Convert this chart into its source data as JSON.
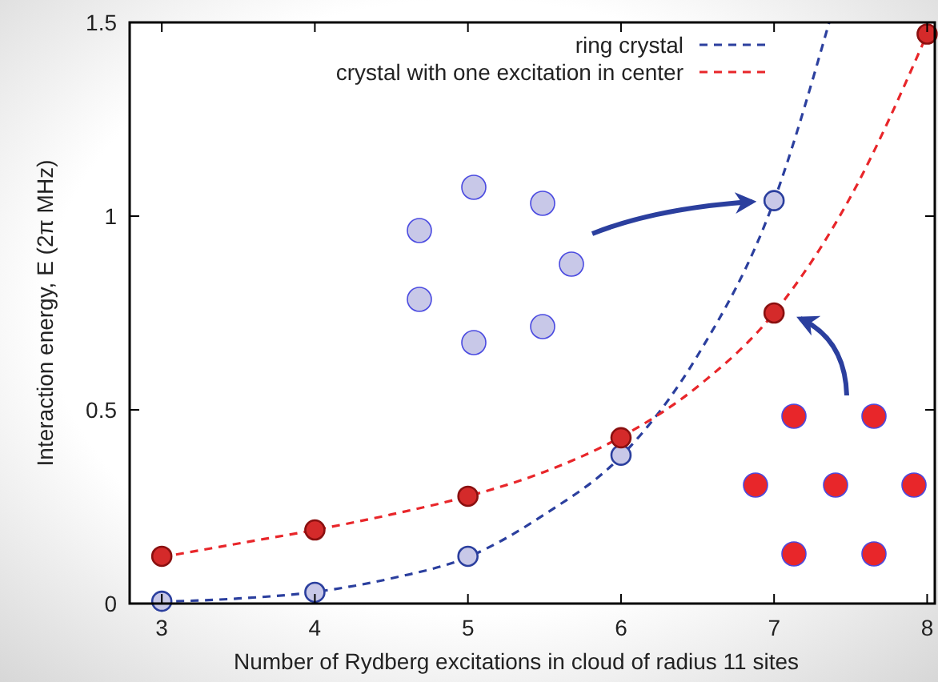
{
  "chart_data": {
    "type": "scatter",
    "xlabel": "Number of Rydberg excitations in cloud of radius 11 sites",
    "ylabel": "Interaction energy, E (2π MHz)",
    "xlim": [
      2.79,
      8.05
    ],
    "ylim": [
      0,
      1.5
    ],
    "xticks": [
      3,
      4,
      5,
      6,
      7,
      8
    ],
    "yticks": [
      0,
      {
        "value": 0.5,
        "label": "0.5"
      },
      1,
      {
        "value": 1.5,
        "label": "1.5"
      }
    ],
    "grid": false,
    "legend": "top right",
    "series": [
      {
        "name": "ring crystal",
        "type": "line",
        "line_style": "dashed",
        "marker": "none",
        "color": "#2b3f9e",
        "x": [
          3,
          3.5,
          4,
          4.5,
          5,
          5.5,
          6,
          6.5,
          7,
          7.36
        ],
        "values": [
          0.005,
          0.013,
          0.03,
          0.065,
          0.12,
          0.23,
          0.38,
          0.64,
          1.04,
          1.5
        ]
      },
      {
        "name": "crystal with one excitation in center",
        "type": "line",
        "line_style": "dashed",
        "marker": "none",
        "color": "#e8262a",
        "x": [
          3,
          3.5,
          4,
          4.5,
          5,
          5.5,
          6,
          6.5,
          7,
          7.5,
          8
        ],
        "values": [
          0.12,
          0.155,
          0.19,
          0.23,
          0.277,
          0.34,
          0.43,
          0.56,
          0.75,
          1.05,
          1.47
        ]
      },
      {
        "marker": "circle",
        "color": "#c8c8e8",
        "x": [
          3,
          4,
          5,
          6,
          7
        ],
        "values": [
          0.006,
          0.029,
          0.122,
          0.383,
          1.04
        ]
      },
      {
        "marker": "circle",
        "color": "#d42a2a",
        "x": [
          3,
          4,
          5,
          6,
          7,
          8
        ],
        "values": [
          0.122,
          0.19,
          0.277,
          0.428,
          0.75,
          1.47
        ]
      }
    ]
  }
}
